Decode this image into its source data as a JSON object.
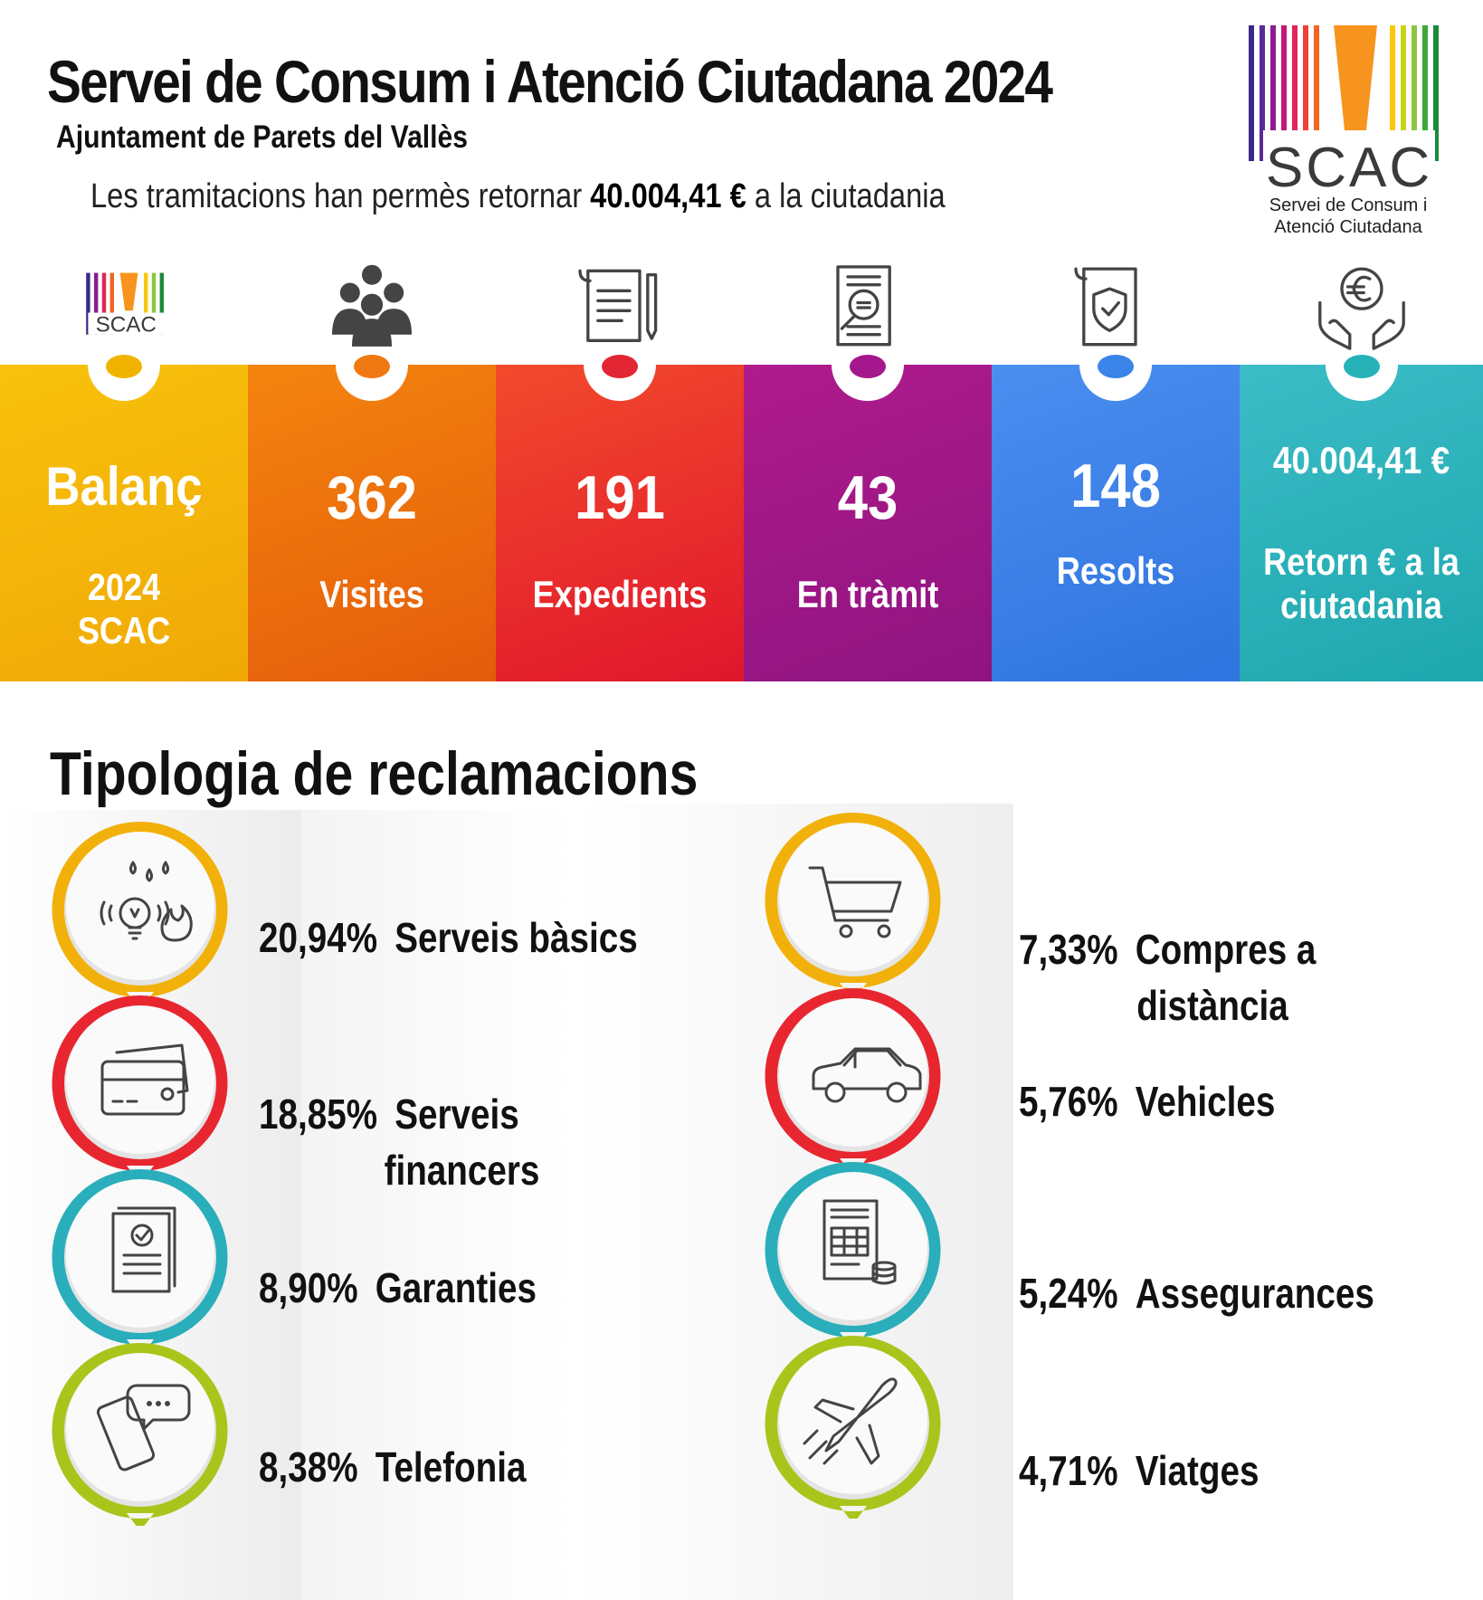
{
  "header": {
    "title": "Servei de Consum i Atenció Ciutadana 2024",
    "subtitle": "Ajuntament de Parets del Vallès",
    "tagline_prefix": "Les tramitacions han permès retornar",
    "tagline_amount": "40.004,41 €",
    "tagline_suffix": "a la ciutadania"
  },
  "logo": {
    "wordmark": "SCAC",
    "caption_line1": "Servei de Consum i",
    "caption_line2": "Atenció Ciutadana"
  },
  "stats": [
    {
      "big": "Balanç",
      "label1": "2024",
      "label2": "SCAC",
      "icon": "scac-logo-icon",
      "color_top": "#f8c20c",
      "color_bottom": "#f0a806",
      "dot": "#f0b400"
    },
    {
      "big": "362",
      "label1": "Visites",
      "label2": "",
      "icon": "people-group-icon",
      "color_top": "#f4840e",
      "color_bottom": "#e45c0b",
      "dot": "#f07812"
    },
    {
      "big": "191",
      "label1": "Expedients",
      "label2": "",
      "icon": "document-pen-icon",
      "color_top": "#f24a2c",
      "color_bottom": "#e0162c",
      "dot": "#e32633"
    },
    {
      "big": "43",
      "label1": "En tràmit",
      "label2": "",
      "icon": "document-search-icon",
      "color_top": "#b01b8c",
      "color_bottom": "#8e1480",
      "dot": "#a5178c"
    },
    {
      "big": "148",
      "label1": "Resolts",
      "label2": "",
      "icon": "document-shield-icon",
      "color_top": "#4b8ef0",
      "color_bottom": "#2f74df",
      "dot": "#3a84ea"
    },
    {
      "big": "40.004,41 €",
      "label1": "Retorn € a la",
      "label2": "ciutadania",
      "icon": "hands-euro-icon",
      "color_top": "#3bbcc6",
      "color_bottom": "#1ea7ae",
      "dot": "#27b2b8"
    }
  ],
  "typology": {
    "title": "Tipologia de reclamacions",
    "items": [
      {
        "pct": "20,94%",
        "label1": "Serveis bàsics",
        "label2": "",
        "icon": "utilities-icon",
        "ring": "#f2b10a"
      },
      {
        "pct": "18,85%",
        "label1": "Serveis",
        "label2": "financers",
        "icon": "credit-card-icon",
        "ring": "#e8262f"
      },
      {
        "pct": "8,90%",
        "label1": "Garanties",
        "label2": "",
        "icon": "warranty-document-icon",
        "ring": "#2aaebb"
      },
      {
        "pct": "8,38%",
        "label1": "Telefonia",
        "label2": "",
        "icon": "phone-chat-icon",
        "ring": "#a9c51c"
      },
      {
        "pct": "7,33%",
        "label1": "Compres a",
        "label2": "distància",
        "icon": "shopping-cart-icon",
        "ring": "#f2b10a"
      },
      {
        "pct": "5,76%",
        "label1": "Vehicles",
        "label2": "",
        "icon": "car-icon",
        "ring": "#e8262f"
      },
      {
        "pct": "5,24%",
        "label1": "Assegurances",
        "label2": "",
        "icon": "insurance-invoice-icon",
        "ring": "#2aaebb"
      },
      {
        "pct": "4,71%",
        "label1": "Viatges",
        "label2": "",
        "icon": "airplane-icon",
        "ring": "#a9c51c"
      }
    ]
  }
}
